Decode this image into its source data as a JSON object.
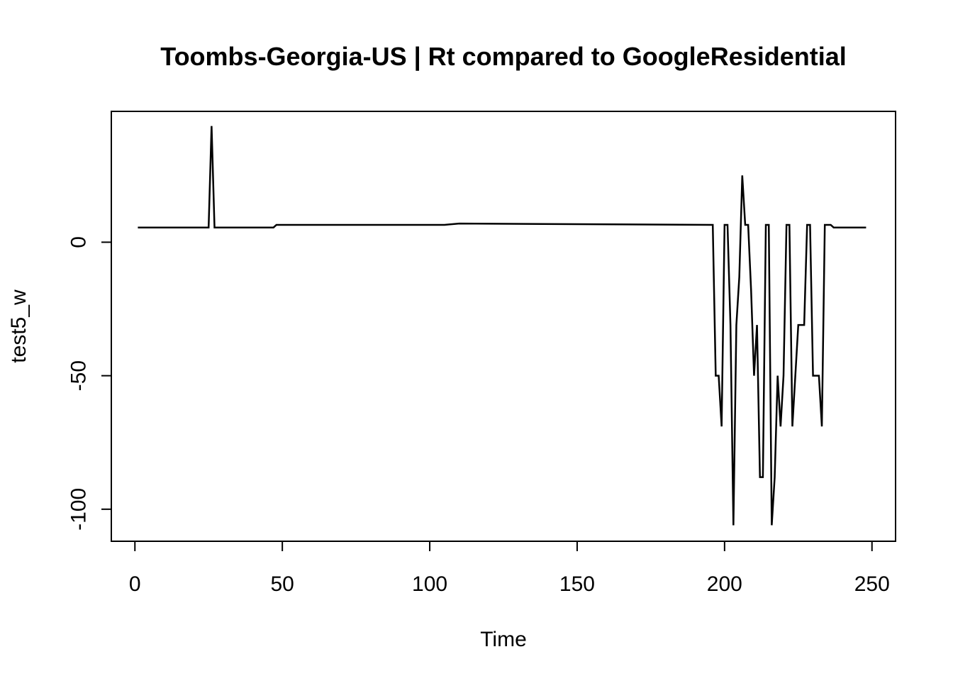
{
  "chart_data": {
    "type": "line",
    "title": "Toombs-Georgia-US | Rt compared to GoogleResidential",
    "xlabel": "Time",
    "ylabel": "test5_w",
    "xlim": [
      -8,
      258
    ],
    "ylim": [
      -112,
      49
    ],
    "x_ticks": [
      0,
      50,
      100,
      150,
      200,
      250
    ],
    "y_ticks": [
      0,
      -50,
      -100
    ],
    "x_tick_labels": [
      "0",
      "50",
      "100",
      "150",
      "200",
      "250"
    ],
    "y_tick_labels": [
      "0",
      "-50",
      "-100"
    ],
    "grid": false,
    "legend": "none",
    "series": [
      {
        "color": "#000000",
        "x": [
          1,
          25,
          26,
          27,
          47,
          48,
          105,
          110,
          196,
          197,
          198,
          199,
          200,
          201,
          202,
          203,
          204,
          205,
          206,
          207,
          208,
          209,
          210,
          211,
          212,
          213,
          214,
          215,
          216,
          217,
          218,
          219,
          220,
          221,
          222,
          223,
          224,
          225,
          226,
          227,
          228,
          229,
          230,
          231,
          232,
          233,
          234,
          235,
          236,
          237,
          248
        ],
        "y": [
          5.5,
          5.5,
          43.5,
          5.5,
          5.5,
          6.5,
          6.5,
          7,
          6.5,
          -50,
          -50,
          -69,
          6.5,
          6.5,
          -31,
          -106,
          -31,
          -13,
          25,
          6.5,
          6.5,
          -18,
          -50,
          -31,
          -88,
          -88,
          6.5,
          6.5,
          -106,
          -88,
          -50,
          -69,
          -50,
          6.5,
          6.5,
          -69,
          -50,
          -31,
          -31,
          -31,
          6.5,
          6.5,
          -50,
          -50,
          -50,
          -69,
          6.5,
          6.5,
          6.5,
          5.5,
          5.5
        ]
      }
    ]
  }
}
